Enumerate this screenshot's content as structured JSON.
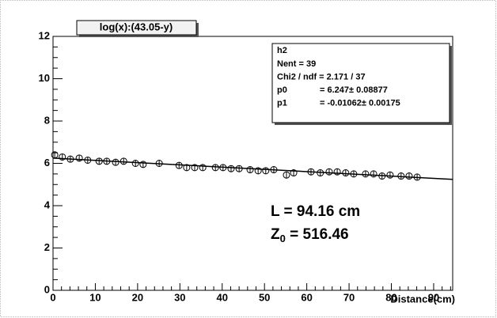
{
  "chart_data": {
    "type": "scatter",
    "title": "log(x):(43.05-y)",
    "x_label": "Distance(cm)",
    "xlim": [
      0,
      94.5
    ],
    "ylim": [
      0,
      12
    ],
    "xticks": [
      0,
      10,
      20,
      30,
      40,
      50,
      60,
      70,
      80,
      90
    ],
    "yticks": [
      0,
      2,
      4,
      6,
      8,
      10,
      12
    ],
    "series": [
      {
        "color": "#000000",
        "x": [
          0.4,
          2.2,
          4.1,
          6.2,
          8.2,
          10.9,
          12.7,
          14.8,
          16.7,
          19.5,
          21.3,
          25.1,
          29.8,
          31.6,
          33.5,
          35.4,
          38.4,
          40.2,
          42.1,
          44.0,
          46.6,
          48.5,
          50.3,
          52.2,
          55.2,
          56.9,
          61.0,
          63.2,
          65.3,
          67.2,
          69.2,
          71.1,
          73.9,
          75.8,
          77.8,
          79.7,
          82.3,
          84.2,
          86.1
        ],
        "values": [
          6.4,
          6.3,
          6.2,
          6.25,
          6.15,
          6.1,
          6.1,
          6.05,
          6.1,
          6.0,
          5.95,
          6.0,
          5.9,
          5.8,
          5.8,
          5.8,
          5.8,
          5.8,
          5.75,
          5.75,
          5.7,
          5.65,
          5.65,
          5.7,
          5.45,
          5.55,
          5.6,
          5.55,
          5.6,
          5.6,
          5.55,
          5.5,
          5.5,
          5.5,
          5.4,
          5.45,
          5.4,
          5.4,
          5.35
        ],
        "errors": [
          0.15,
          0.15,
          0.15,
          0.15,
          0.15,
          0.15,
          0.15,
          0.15,
          0.15,
          0.15,
          0.15,
          0.15,
          0.15,
          0.15,
          0.15,
          0.15,
          0.15,
          0.15,
          0.15,
          0.15,
          0.15,
          0.15,
          0.15,
          0.15,
          0.15,
          0.15,
          0.15,
          0.15,
          0.15,
          0.15,
          0.15,
          0.15,
          0.15,
          0.15,
          0.15,
          0.15,
          0.15,
          0.15,
          0.15
        ]
      }
    ],
    "fit": {
      "intercept": 6.247,
      "slope": -0.01062
    },
    "stats": {
      "name": "h2",
      "rows": [
        [
          "Nent = 39"
        ],
        [
          "Chi2 / ndf = 2.171 / 37"
        ],
        [
          "p0",
          "= 6.247± 0.08877"
        ],
        [
          "p1",
          "= -0.01062± 0.00175"
        ]
      ]
    },
    "annotations": [
      {
        "text": "L = 94.16 cm"
      },
      {
        "text": "Z",
        "sub": "0",
        "rest": " = 516.46"
      }
    ]
  }
}
